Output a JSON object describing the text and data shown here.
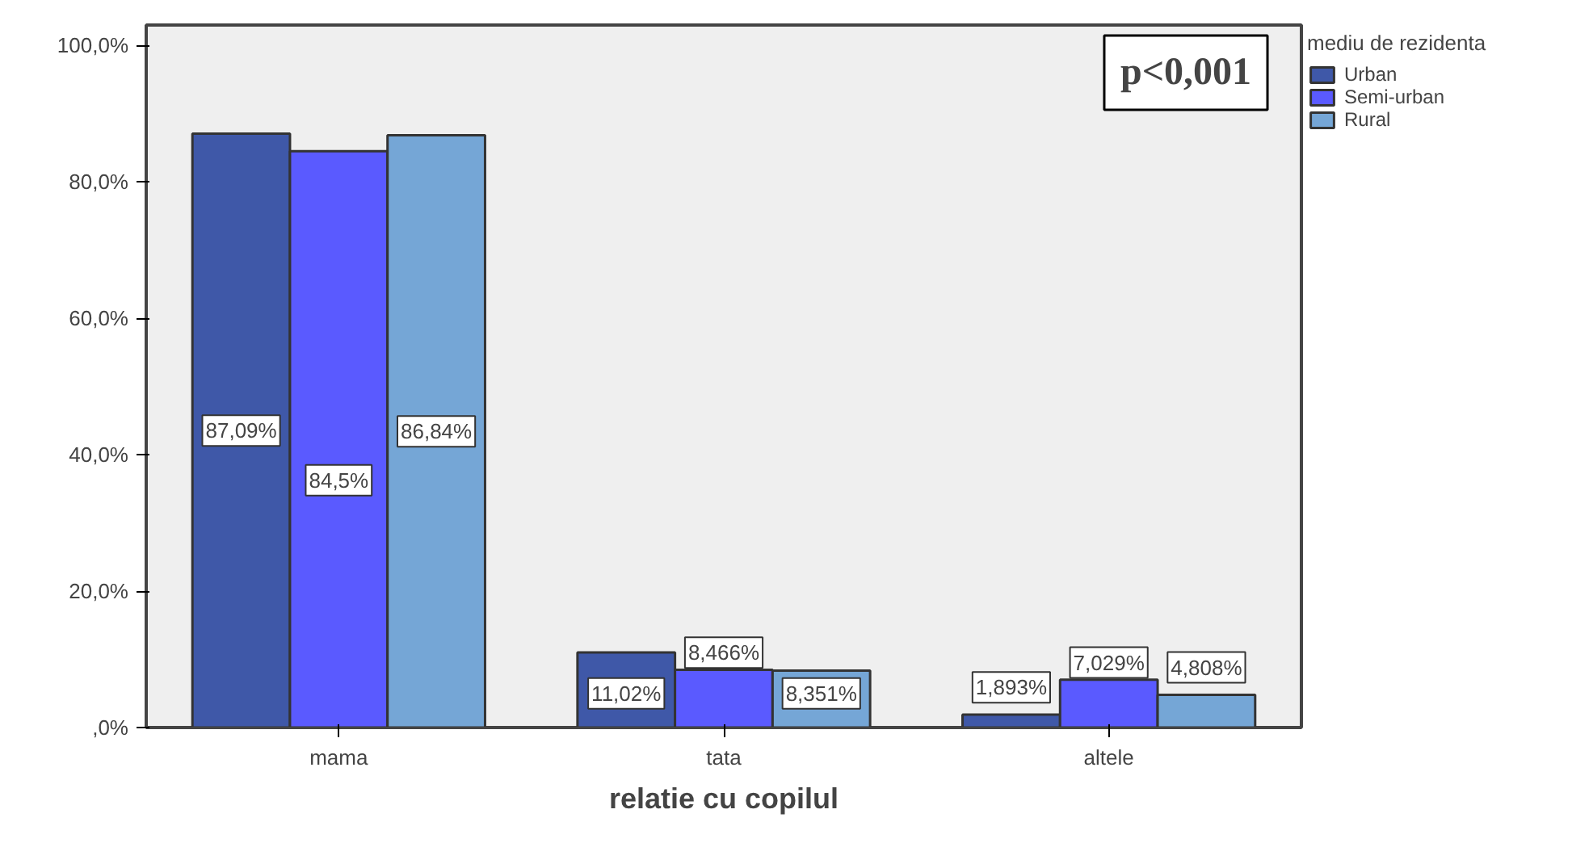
{
  "chart_data": {
    "type": "bar",
    "xlabel": "relatie cu copilul",
    "legend_title": "mediu de rezidenta",
    "categories": [
      "mama",
      "tata",
      "altele"
    ],
    "series": [
      {
        "name": "Urban",
        "color": "#3f58a8",
        "values": [
          87.09,
          11.02,
          1.893
        ],
        "value_labels": [
          "87,09%",
          "11,02%",
          "1,893%"
        ]
      },
      {
        "name": "Semi-urban",
        "color": "#5a5aff",
        "values": [
          84.5,
          8.466,
          7.029
        ],
        "value_labels": [
          "84,5%",
          "8,466%",
          "7,029%"
        ]
      },
      {
        "name": "Rural",
        "color": "#75a6d6",
        "values": [
          86.84,
          8.351,
          4.808
        ],
        "value_labels": [
          "86,84%",
          "8,351%",
          "4,808%"
        ]
      }
    ],
    "ylim": [
      0,
      103
    ],
    "yticks": [
      {
        "value": 0,
        "label": ",0%"
      },
      {
        "value": 20,
        "label": "20,0%"
      },
      {
        "value": 40,
        "label": "40,0%"
      },
      {
        "value": 60,
        "label": "60,0%"
      },
      {
        "value": 80,
        "label": "80,0%"
      },
      {
        "value": 100,
        "label": "100,0%"
      }
    ],
    "grid": false,
    "legend": "right",
    "annotations": [
      "p<0,001"
    ]
  }
}
